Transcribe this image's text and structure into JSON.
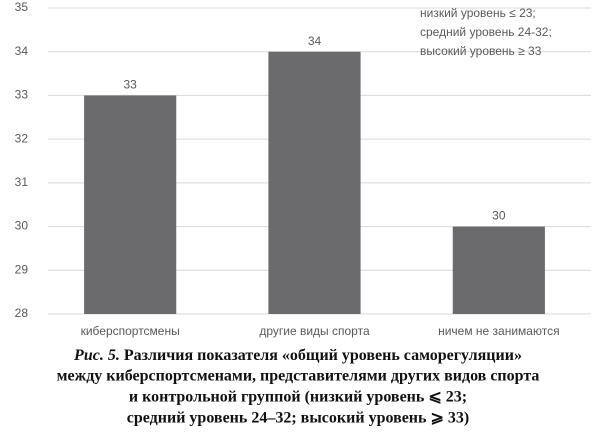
{
  "chart_data": {
    "type": "bar",
    "categories": [
      "киберспортсмены",
      "другие виды спорта",
      "ничем не занимаются"
    ],
    "values": [
      33,
      34,
      30
    ],
    "color": "#6b6b6d",
    "ylim": [
      28,
      35
    ],
    "yticks": [
      28,
      29,
      30,
      31,
      32,
      33,
      34,
      35
    ],
    "grid": true,
    "annotation": [
      "низкий уровень  ≤ 23;",
      "средний уровень 24-32;",
      "высокий уровень ≥ 33"
    ],
    "caption": {
      "label": "Рис. 5.",
      "lines": [
        "Различия показателя «общий уровень саморегуляции»",
        "между киберспортсменами, представителями других видов спорта",
        "и контрольной группой (низкий уровень ⩽ 23;",
        "средний уровень 24–32; высокий уровень ⩾ 33)"
      ]
    }
  }
}
